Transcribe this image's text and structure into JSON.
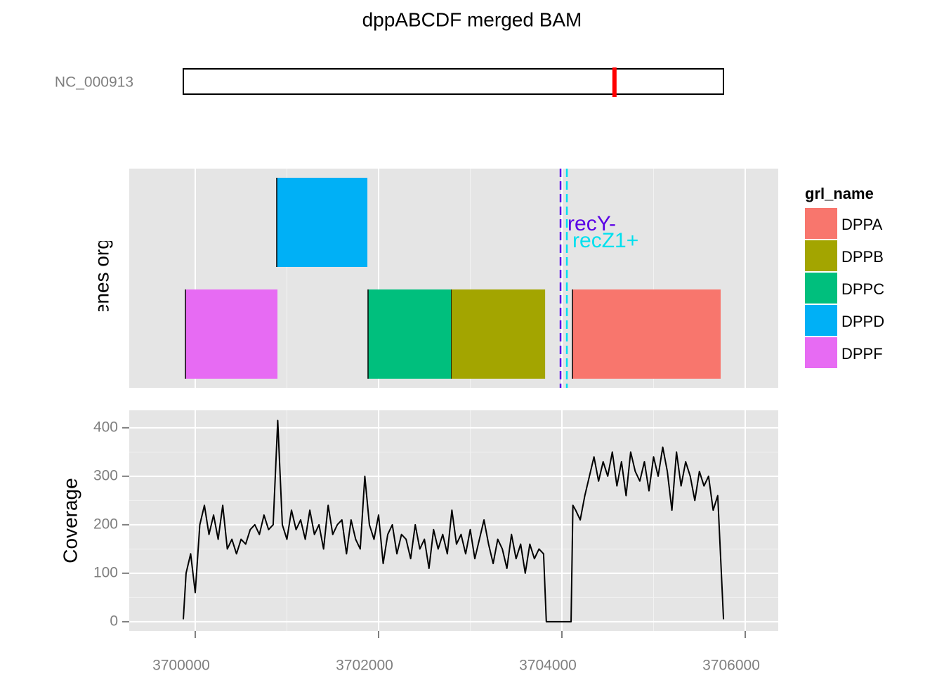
{
  "title": "dppABCDF merged BAM",
  "chart_data": [
    {
      "type": "ideogram",
      "label": "NC_000913",
      "xlim": [
        0,
        4641652
      ],
      "highlight": 3705000,
      "color": "#ff0000"
    },
    {
      "type": "gene-track",
      "ylabel": "Operon genes organisation",
      "legend_title": "grl_name",
      "xlim": [
        3699280,
        3706360
      ],
      "xticks": [
        3700000,
        3702000,
        3704000,
        3706000
      ],
      "grid": true,
      "genes": [
        {
          "name": "DPPA",
          "start": 3704115,
          "end": 3705732,
          "color": "#f8766d"
        },
        {
          "name": "DPPB",
          "start": 3702790,
          "end": 3703817,
          "color": "#a3a500"
        },
        {
          "name": "DPPC",
          "start": 3701885,
          "end": 3702790,
          "color": "#00bf7d"
        },
        {
          "name": "DPPD",
          "start": 3700889,
          "end": 3701878,
          "color": "#00b0f6"
        },
        {
          "name": "DPPF",
          "start": 3699893,
          "end": 3700897,
          "color": "#e76bf3"
        }
      ],
      "markers": [
        {
          "label": "recY-",
          "x": 3703985,
          "color": "#5a00e6"
        },
        {
          "label": "recZ1+",
          "x": 3704054,
          "color": "#00e0ee"
        }
      ]
    },
    {
      "type": "line",
      "ylabel": "Coverage",
      "xlim": [
        3699280,
        3706360
      ],
      "xticks": [
        3700000,
        3702000,
        3704000,
        3706000
      ],
      "ylim": [
        -19,
        436
      ],
      "yticks": [
        0,
        100,
        200,
        300,
        400
      ],
      "grid": true,
      "x": [
        3699870,
        3699900,
        3699950,
        3700000,
        3700050,
        3700100,
        3700150,
        3700200,
        3700250,
        3700300,
        3700350,
        3700400,
        3700450,
        3700500,
        3700550,
        3700600,
        3700650,
        3700700,
        3700750,
        3700800,
        3700850,
        3700900,
        3700950,
        3701000,
        3701050,
        3701100,
        3701150,
        3701200,
        3701250,
        3701300,
        3701350,
        3701400,
        3701450,
        3701500,
        3701550,
        3701600,
        3701650,
        3701700,
        3701750,
        3701800,
        3701850,
        3701900,
        3701950,
        3702000,
        3702050,
        3702100,
        3702150,
        3702200,
        3702250,
        3702300,
        3702350,
        3702400,
        3702450,
        3702500,
        3702550,
        3702600,
        3702650,
        3702700,
        3702750,
        3702800,
        3702850,
        3702900,
        3702950,
        3703000,
        3703050,
        3703100,
        3703150,
        3703200,
        3703250,
        3703300,
        3703350,
        3703400,
        3703450,
        3703500,
        3703550,
        3703600,
        3703650,
        3703700,
        3703750,
        3703800,
        3703830,
        3703900,
        3704000,
        3704050,
        3704100,
        3704120,
        3704150,
        3704200,
        3704250,
        3704300,
        3704350,
        3704400,
        3704450,
        3704500,
        3704550,
        3704600,
        3704650,
        3704700,
        3704750,
        3704800,
        3704850,
        3704900,
        3704950,
        3705000,
        3705050,
        3705100,
        3705150,
        3705200,
        3705250,
        3705300,
        3705350,
        3705400,
        3705450,
        3705500,
        3705550,
        3705600,
        3705650,
        3705700,
        3705763
      ],
      "series": [
        {
          "color": "#000000",
          "values": [
            5,
            100,
            140,
            60,
            200,
            240,
            180,
            220,
            170,
            240,
            150,
            170,
            140,
            170,
            160,
            190,
            200,
            180,
            220,
            190,
            200,
            415,
            200,
            170,
            230,
            190,
            210,
            170,
            230,
            180,
            200,
            150,
            240,
            180,
            200,
            210,
            140,
            210,
            170,
            150,
            300,
            200,
            170,
            220,
            120,
            180,
            200,
            140,
            180,
            170,
            130,
            200,
            150,
            170,
            110,
            190,
            150,
            180,
            140,
            230,
            160,
            180,
            140,
            190,
            130,
            170,
            210,
            160,
            120,
            170,
            150,
            110,
            180,
            130,
            160,
            100,
            160,
            130,
            150,
            140,
            0,
            0,
            0,
            0,
            0,
            240,
            230,
            210,
            260,
            300,
            340,
            290,
            330,
            300,
            350,
            280,
            330,
            260,
            350,
            310,
            290,
            330,
            270,
            340,
            300,
            360,
            310,
            230,
            350,
            280,
            330,
            300,
            250,
            310,
            280,
            300,
            230,
            260,
            5
          ]
        }
      ]
    }
  ]
}
